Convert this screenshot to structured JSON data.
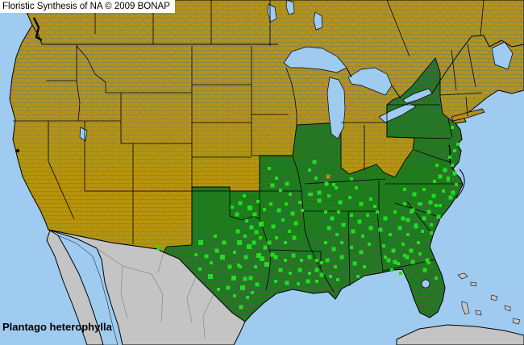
{
  "header": {
    "title": "Floristic Synthesis of NA © 2009 BONAP"
  },
  "footer": {
    "species": "Plantago heterophylla"
  },
  "colors": {
    "water": "#9ECBEF",
    "land_absent": "#B6950C",
    "state_present": "#1F7A1E",
    "county_present": "#23DC23",
    "county_orange": "#C8821E",
    "foreign_land": "#C4C4C4",
    "county_line_absent": "#7A7A6E",
    "county_line_present": "#49604B",
    "state_border": "#000000",
    "label_bg": "#FFFFFF",
    "label_text": "#000000"
  },
  "map": {
    "states_shaded_present": [
      "Texas",
      "Oklahoma",
      "Missouri",
      "Illinois",
      "Kentucky",
      "Tennessee",
      "Arkansas",
      "Louisiana",
      "Mississippi",
      "Alabama",
      "Georgia",
      "Florida",
      "South Carolina",
      "North Carolina",
      "Virginia",
      "Maryland",
      "Delaware",
      "New Jersey",
      "Pennsylvania",
      "New York"
    ],
    "rare_county": [
      [
        407,
        219,
        5
      ]
    ],
    "county_occurrences": [
      [
        197,
        308,
        5
      ],
      [
        249,
        301,
        6
      ],
      [
        256,
        318,
        5
      ],
      [
        248,
        334,
        4
      ],
      [
        261,
        343,
        6
      ],
      [
        269,
        311,
        5
      ],
      [
        267,
        293,
        4
      ],
      [
        278,
        301,
        5
      ],
      [
        276,
        319,
        6
      ],
      [
        285,
        331,
        5
      ],
      [
        291,
        313,
        4
      ],
      [
        297,
        301,
        6
      ],
      [
        295,
        287,
        5
      ],
      [
        304,
        293,
        4
      ],
      [
        309,
        306,
        6
      ],
      [
        305,
        319,
        5
      ],
      [
        298,
        331,
        4
      ],
      [
        290,
        345,
        6
      ],
      [
        283,
        357,
        5
      ],
      [
        291,
        367,
        4
      ],
      [
        301,
        357,
        6
      ],
      [
        311,
        345,
        5
      ],
      [
        317,
        331,
        4
      ],
      [
        321,
        317,
        6
      ],
      [
        315,
        301,
        5
      ],
      [
        323,
        295,
        4
      ],
      [
        329,
        307,
        5
      ],
      [
        325,
        321,
        6
      ],
      [
        319,
        353,
        5
      ],
      [
        307,
        369,
        4
      ],
      [
        299,
        381,
        5
      ],
      [
        271,
        359,
        4
      ],
      [
        312,
        282,
        5
      ],
      [
        296,
        329,
        4
      ],
      [
        331,
        328,
        6
      ],
      [
        338,
        316,
        5
      ],
      [
        313,
        363,
        4
      ],
      [
        304,
        346,
        5
      ],
      [
        262,
        326,
        4
      ],
      [
        243,
        316,
        4
      ],
      [
        298,
        252,
        5
      ],
      [
        310,
        258,
        6
      ],
      [
        320,
        250,
        4
      ],
      [
        316,
        266,
        5
      ],
      [
        306,
        274,
        4
      ],
      [
        294,
        266,
        5
      ],
      [
        324,
        278,
        6
      ],
      [
        328,
        260,
        4
      ],
      [
        318,
        288,
        5
      ],
      [
        288,
        257,
        4
      ],
      [
        303,
        243,
        4
      ],
      [
        338,
        230,
        5
      ],
      [
        348,
        236,
        4
      ],
      [
        343,
        221,
        4
      ],
      [
        356,
        228,
        5
      ],
      [
        360,
        241,
        4
      ],
      [
        334,
        209,
        4
      ],
      [
        390,
        201,
        5
      ],
      [
        384,
        211,
        4
      ],
      [
        392,
        221,
        4
      ],
      [
        405,
        228,
        5
      ],
      [
        414,
        229,
        4
      ],
      [
        396,
        239,
        5
      ],
      [
        386,
        241,
        4
      ],
      [
        436,
        222,
        4
      ],
      [
        336,
        253,
        4
      ],
      [
        346,
        261,
        5
      ],
      [
        355,
        253,
        4
      ],
      [
        363,
        265,
        5
      ],
      [
        351,
        273,
        4
      ],
      [
        339,
        281,
        5
      ],
      [
        359,
        287,
        4
      ],
      [
        367,
        277,
        5
      ],
      [
        343,
        295,
        4
      ],
      [
        334,
        301,
        5
      ],
      [
        354,
        301,
        4
      ],
      [
        365,
        295,
        5
      ],
      [
        372,
        251,
        4
      ],
      [
        375,
        261,
        4
      ],
      [
        342,
        319,
        5
      ],
      [
        354,
        323,
        4
      ],
      [
        364,
        317,
        5
      ],
      [
        374,
        323,
        4
      ],
      [
        384,
        319,
        5
      ],
      [
        393,
        323,
        4
      ],
      [
        348,
        335,
        5
      ],
      [
        360,
        339,
        4
      ],
      [
        372,
        335,
        5
      ],
      [
        384,
        339,
        4
      ],
      [
        393,
        335,
        5
      ],
      [
        342,
        349,
        4
      ],
      [
        356,
        351,
        5
      ],
      [
        370,
        352,
        4
      ],
      [
        382,
        349,
        5
      ],
      [
        393,
        349,
        4
      ],
      [
        399,
        341,
        5
      ],
      [
        399,
        326,
        4
      ],
      [
        404,
        263,
        4
      ],
      [
        412,
        271,
        5
      ],
      [
        420,
        263,
        4
      ],
      [
        408,
        283,
        5
      ],
      [
        418,
        291,
        4
      ],
      [
        426,
        279,
        5
      ],
      [
        404,
        301,
        4
      ],
      [
        414,
        309,
        5
      ],
      [
        424,
        301,
        4
      ],
      [
        406,
        323,
        5
      ],
      [
        416,
        331,
        4
      ],
      [
        424,
        319,
        5
      ],
      [
        410,
        343,
        4
      ],
      [
        419,
        347,
        4
      ],
      [
        384,
        241,
        4
      ],
      [
        396,
        249,
        5
      ],
      [
        408,
        243,
        4
      ],
      [
        422,
        251,
        5
      ],
      [
        434,
        245,
        4
      ],
      [
        448,
        253,
        5
      ],
      [
        460,
        247,
        4
      ],
      [
        442,
        233,
        4
      ],
      [
        417,
        233,
        4
      ],
      [
        465,
        256,
        4
      ],
      [
        436,
        267,
        4
      ],
      [
        446,
        275,
        5
      ],
      [
        456,
        267,
        4
      ],
      [
        438,
        287,
        5
      ],
      [
        450,
        293,
        4
      ],
      [
        460,
        283,
        5
      ],
      [
        436,
        307,
        4
      ],
      [
        448,
        313,
        5
      ],
      [
        458,
        303,
        4
      ],
      [
        440,
        327,
        5
      ],
      [
        452,
        331,
        4
      ],
      [
        444,
        343,
        4
      ],
      [
        468,
        263,
        4
      ],
      [
        478,
        271,
        5
      ],
      [
        490,
        263,
        4
      ],
      [
        500,
        271,
        5
      ],
      [
        510,
        263,
        4
      ],
      [
        472,
        285,
        5
      ],
      [
        484,
        291,
        4
      ],
      [
        496,
        283,
        5
      ],
      [
        506,
        291,
        4
      ],
      [
        516,
        281,
        5
      ],
      [
        476,
        305,
        4
      ],
      [
        488,
        311,
        5
      ],
      [
        500,
        303,
        4
      ],
      [
        510,
        311,
        5
      ],
      [
        519,
        301,
        4
      ],
      [
        482,
        323,
        5
      ],
      [
        494,
        327,
        4
      ],
      [
        505,
        319,
        5
      ],
      [
        478,
        319,
        4
      ],
      [
        490,
        325,
        5
      ],
      [
        502,
        317,
        4
      ],
      [
        512,
        325,
        5
      ],
      [
        521,
        315,
        4
      ],
      [
        530,
        323,
        5
      ],
      [
        486,
        335,
        4
      ],
      [
        497,
        339,
        4
      ],
      [
        527,
        335,
        5
      ],
      [
        532,
        326,
        4
      ],
      [
        541,
        345,
        4
      ],
      [
        502,
        253,
        4
      ],
      [
        512,
        261,
        5
      ],
      [
        522,
        253,
        4
      ],
      [
        532,
        263,
        5
      ],
      [
        541,
        255,
        4
      ],
      [
        506,
        273,
        5
      ],
      [
        516,
        279,
        4
      ],
      [
        526,
        271,
        5
      ],
      [
        535,
        279,
        4
      ],
      [
        544,
        269,
        5
      ],
      [
        524,
        287,
        4
      ],
      [
        535,
        289,
        4
      ],
      [
        502,
        235,
        4
      ],
      [
        514,
        241,
        5
      ],
      [
        526,
        235,
        4
      ],
      [
        538,
        243,
        5
      ],
      [
        550,
        237,
        4
      ],
      [
        559,
        245,
        5
      ],
      [
        520,
        253,
        4
      ],
      [
        534,
        251,
        5
      ],
      [
        546,
        255,
        4
      ],
      [
        562,
        239,
        5
      ],
      [
        566,
        229,
        4
      ],
      [
        556,
        221,
        4
      ],
      [
        542,
        205,
        4
      ],
      [
        552,
        211,
        5
      ],
      [
        561,
        205,
        4
      ],
      [
        546,
        219,
        5
      ],
      [
        556,
        223,
        4
      ],
      [
        564,
        215,
        5
      ],
      [
        539,
        225,
        4
      ],
      [
        564,
        187,
        4
      ],
      [
        568,
        179,
        4
      ],
      [
        558,
        195,
        4
      ],
      [
        561,
        158,
        4
      ]
    ]
  }
}
